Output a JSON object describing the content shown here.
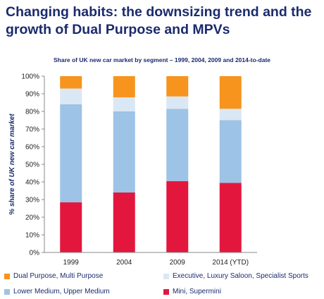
{
  "title": "Changing habits: the downsizing trend and the growth of Dual Purpose and MPVs",
  "chart_data": {
    "type": "bar",
    "stacked": true,
    "title": "Share of UK new car market by segment – 1999, 2004, 2009 and 2014-to-date",
    "ylabel": "% share of UK new car market",
    "xlabel": "",
    "ylim": [
      0,
      100
    ],
    "yticks": [
      "0%",
      "10%",
      "20%",
      "30%",
      "40%",
      "50%",
      "60%",
      "70%",
      "80%",
      "90%",
      "100%"
    ],
    "categories": [
      "1999",
      "2004",
      "2009",
      "2014 (YTD)"
    ],
    "series": [
      {
        "name": "Mini, Supermini",
        "color": "#e3173e",
        "values": [
          28.5,
          34,
          40.5,
          39.5
        ]
      },
      {
        "name": "Lower Medium, Upper Medium",
        "color": "#9dc3e6",
        "values": [
          55.5,
          46,
          41,
          35.5
        ]
      },
      {
        "name": "Executive, Luxury Saloon, Specialist Sports",
        "color": "#dae7f4",
        "values": [
          9,
          8,
          7,
          6.5
        ]
      },
      {
        "name": "Dual Purpose, Multi Purpose",
        "color": "#f7941d",
        "values": [
          7,
          12,
          11.5,
          18.5
        ]
      }
    ],
    "legend": {
      "placement": "bottom",
      "order": [
        "Dual Purpose, Multi Purpose",
        "Executive, Luxury Saloon, Specialist Sports",
        "Lower Medium, Upper Medium",
        "Mini, Supermini"
      ]
    },
    "grid": false
  }
}
